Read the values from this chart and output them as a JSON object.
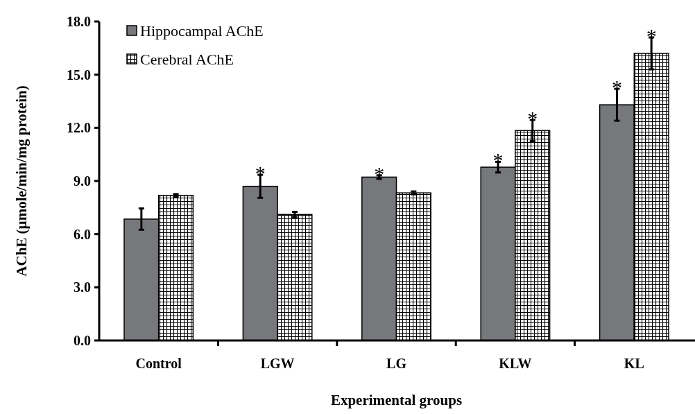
{
  "chart_data": {
    "type": "bar",
    "xlabel": "Experimental groups",
    "ylabel": "AChE (µmole/min/mg protein)",
    "categories": [
      "Control",
      "LGW",
      "LG",
      "KLW",
      "KL"
    ],
    "series": [
      {
        "name": "Hippocampal AChE",
        "color": "#76787b",
        "values": [
          6.85,
          8.7,
          9.22,
          9.78,
          13.3
        ],
        "errors": [
          0.6,
          0.65,
          0.1,
          0.3,
          0.9
        ],
        "value_labels": [
          null,
          "*",
          "*",
          "*",
          "*"
        ]
      },
      {
        "name": "Cerebral AChE",
        "color": "#000000",
        "values": [
          8.19,
          7.11,
          8.33,
          11.85,
          16.2
        ],
        "errors": [
          0.07,
          0.15,
          0.08,
          0.6,
          0.9
        ],
        "value_labels": [
          null,
          null,
          null,
          "*",
          "*"
        ]
      }
    ],
    "ylim": [
      0,
      18
    ],
    "yticks": [
      {
        "value": 0,
        "label": "0.0"
      },
      {
        "value": 3,
        "label": "3.0"
      },
      {
        "value": 6,
        "label": "6.0"
      },
      {
        "value": 9,
        "label": "9.0"
      },
      {
        "value": 12,
        "label": "12.0"
      },
      {
        "value": 15,
        "label": "15.0"
      },
      {
        "value": 18,
        "label": "18.0"
      }
    ],
    "grid": false,
    "legend": "top left"
  }
}
